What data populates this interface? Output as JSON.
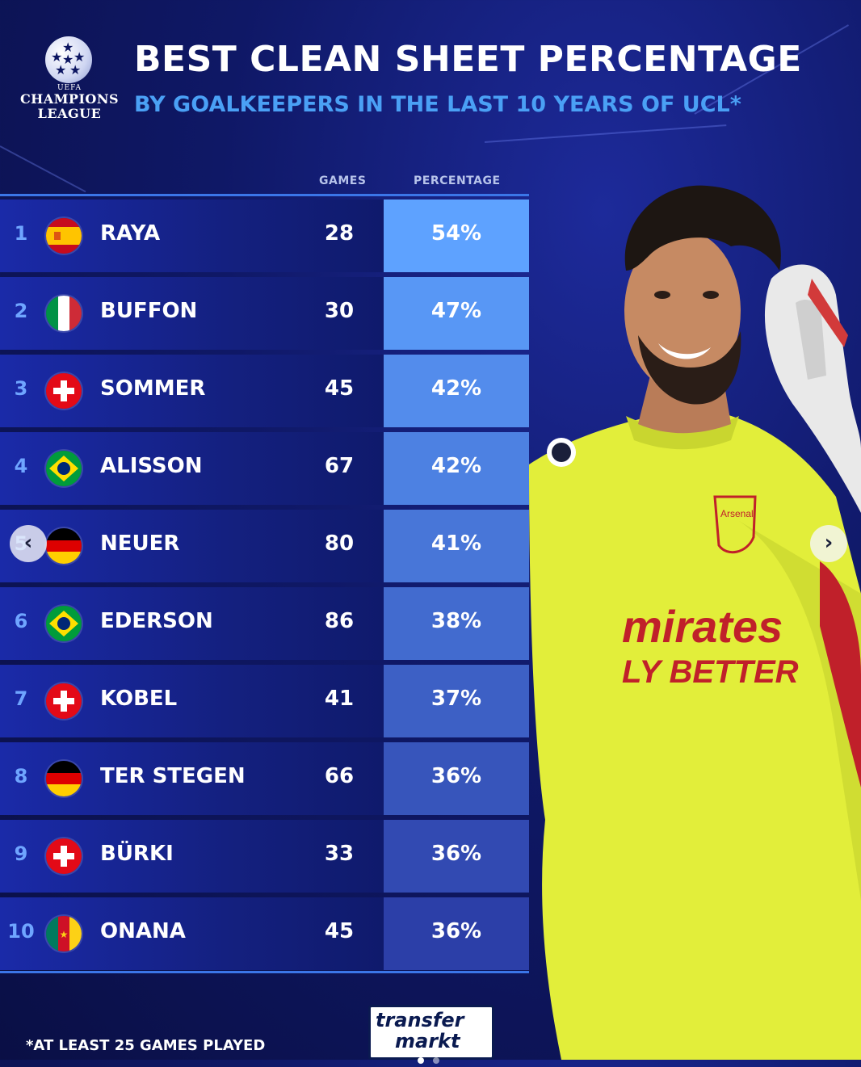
{
  "brand": {
    "logo_line1": "UEFA",
    "logo_line2": "CHAMPIONS",
    "logo_line3": "LEAGUE"
  },
  "header": {
    "title": "BEST CLEAN SHEET PERCENTAGE",
    "subtitle": "BY GOALKEEPERS IN THE LAST 10 YEARS OF UCL*"
  },
  "table": {
    "col_games": "GAMES",
    "col_percentage": "PERCENTAGE",
    "rows": [
      {
        "rank": "1",
        "name": "RAYA",
        "country": "spain",
        "games": "28",
        "pct": "54%"
      },
      {
        "rank": "2",
        "name": "BUFFON",
        "country": "italy",
        "games": "30",
        "pct": "47%"
      },
      {
        "rank": "3",
        "name": "SOMMER",
        "country": "switzerland",
        "games": "45",
        "pct": "42%"
      },
      {
        "rank": "4",
        "name": "ALISSON",
        "country": "brazil",
        "games": "67",
        "pct": "42%"
      },
      {
        "rank": "5",
        "name": "NEUER",
        "country": "germany",
        "games": "80",
        "pct": "41%"
      },
      {
        "rank": "6",
        "name": "EDERSON",
        "country": "brazil",
        "games": "86",
        "pct": "38%"
      },
      {
        "rank": "7",
        "name": "KOBEL",
        "country": "switzerland",
        "games": "41",
        "pct": "37%"
      },
      {
        "rank": "8",
        "name": "TER STEGEN",
        "country": "germany",
        "games": "66",
        "pct": "36%"
      },
      {
        "rank": "9",
        "name": "BÜRKI",
        "country": "switzerland",
        "games": "33",
        "pct": "36%"
      },
      {
        "rank": "10",
        "name": "ONANA",
        "country": "cameroon",
        "games": "45",
        "pct": "36%"
      }
    ]
  },
  "player_shirt": {
    "sponsor_line1": "mirates",
    "sponsor_line2": "LY BETTER",
    "crest_text": "Arsenal"
  },
  "footnote": "*AT LEAST 25 GAMES PLAYED",
  "source_logo": {
    "line1": "transfer",
    "line2": "markt"
  },
  "nav": {
    "prev_icon": "chevron-left-icon",
    "next_icon": "chevron-right-icon",
    "prev_glyph": "‹",
    "next_glyph": "›"
  },
  "colors": {
    "background": "#0f1866",
    "row_left": "#14207f",
    "accent_line": "#3b76e8",
    "rank_text": "#6fa5ff",
    "subtitle": "#4aa0f5",
    "pct_col_top": "#5ea2ff",
    "pct_col_bottom": "#2c3fa8",
    "shirt": "#e2ee3a"
  }
}
